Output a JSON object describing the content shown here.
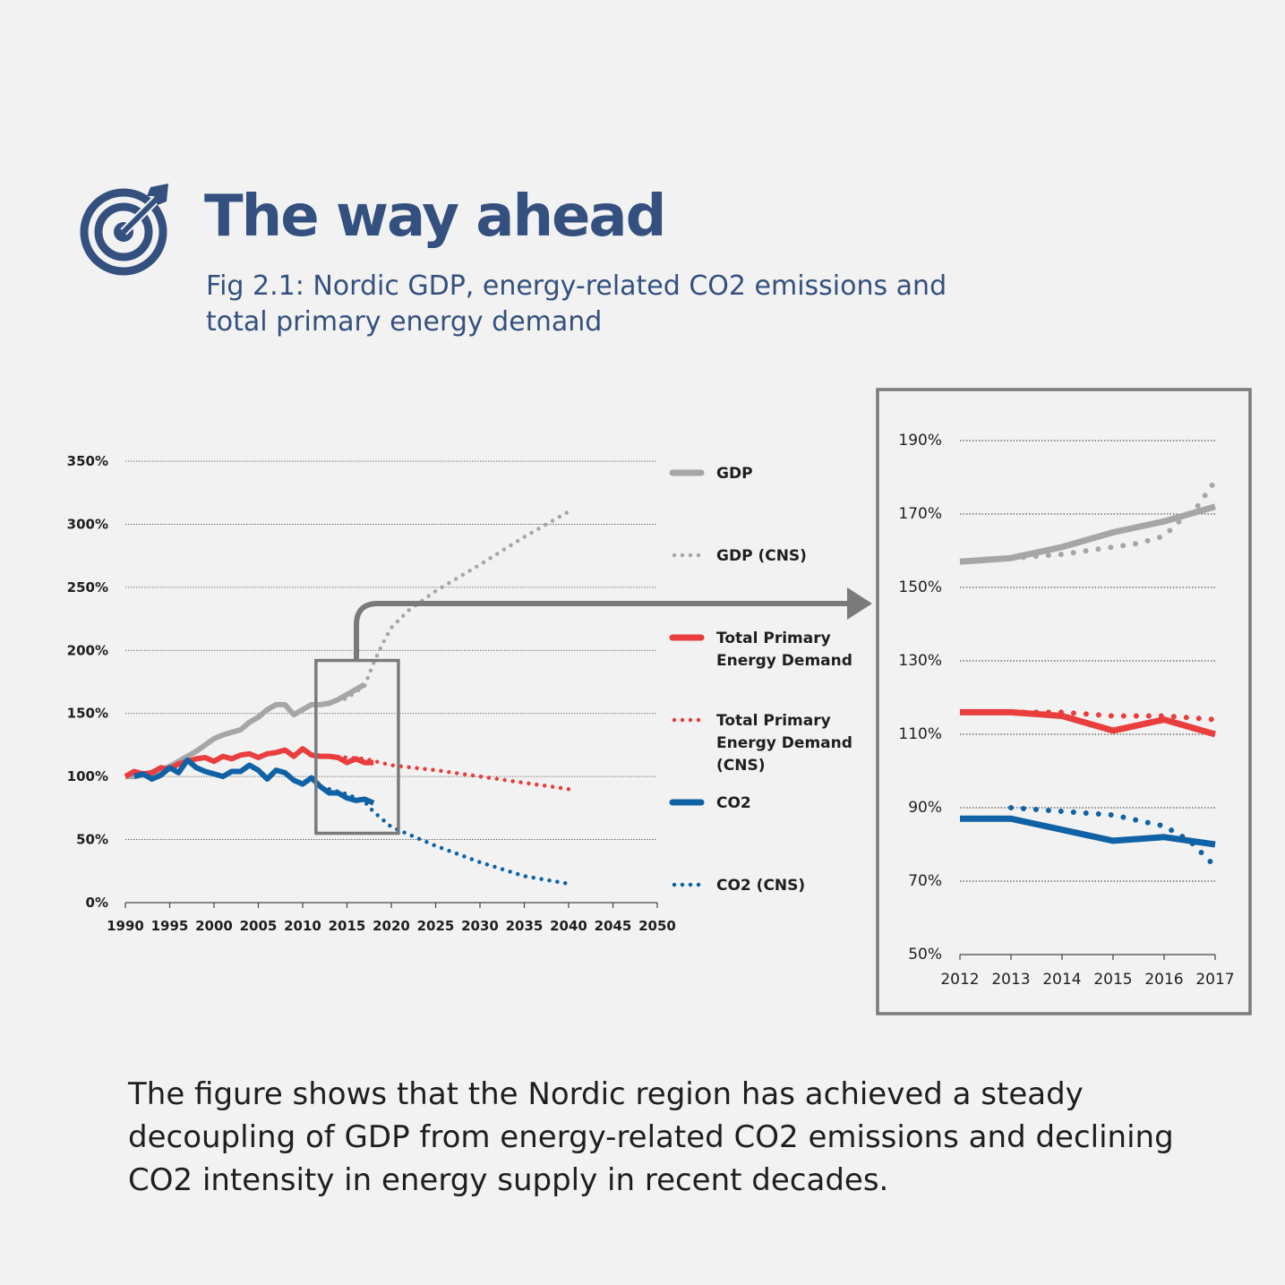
{
  "header": {
    "title": "The way ahead",
    "subtitle": "Fig 2.1: Nordic GDP, energy-related CO2 emissions and total primary energy demand",
    "icon": "target-arrow-icon",
    "color": "#34507f"
  },
  "caption": "The figure shows that the Nordic region has achieved a steady decoupling of GDP from energy-related CO2 emissions and declining CO2 intensity in energy supply in recent decades.",
  "colors": {
    "gdp": "#a6a6a6",
    "energy": "#ea3d3e",
    "co2": "#0f62a5",
    "zoom_frame": "#7a7a7a"
  },
  "chart_data": [
    {
      "type": "line",
      "title": "",
      "xlabel": "",
      "ylabel": "",
      "xlim": [
        1990,
        2050
      ],
      "ylim": [
        0,
        350
      ],
      "x_ticks": [
        "1990",
        "1995",
        "2000",
        "2005",
        "2010",
        "2015",
        "2020",
        "2025",
        "2030",
        "2035",
        "2040",
        "2045",
        "2050"
      ],
      "y_ticks": [
        "0%",
        "50%",
        "100%",
        "150%",
        "200%",
        "250%",
        "300%",
        "350%"
      ],
      "grid": true,
      "legend_position": "right",
      "series": [
        {
          "name": "GDP",
          "key": "gdp",
          "style": "solid",
          "x": [
            1990,
            1991,
            1992,
            1993,
            1994,
            1995,
            1996,
            1997,
            1998,
            1999,
            2000,
            2001,
            2002,
            2003,
            2004,
            2005,
            2006,
            2007,
            2008,
            2009,
            2010,
            2011,
            2012,
            2013,
            2014,
            2015,
            2016,
            2017
          ],
          "y": [
            100,
            100,
            101,
            102,
            105,
            108,
            112,
            116,
            120,
            125,
            130,
            133,
            135,
            137,
            143,
            147,
            153,
            157,
            157,
            149,
            153,
            157,
            157,
            158,
            161,
            165,
            169,
            173
          ]
        },
        {
          "name": "GDP (CNS)",
          "key": "gdp",
          "style": "dotted",
          "x": [
            2013,
            2015,
            2017,
            2018,
            2019,
            2020,
            2022,
            2025,
            2030,
            2035,
            2040
          ],
          "y": [
            158,
            162,
            172,
            190,
            205,
            218,
            232,
            247,
            268,
            290,
            310
          ]
        },
        {
          "name": "Total Primary Energy Demand",
          "key": "energy",
          "style": "solid",
          "x": [
            1990,
            1991,
            1992,
            1993,
            1994,
            1995,
            1996,
            1997,
            1998,
            1999,
            2000,
            2001,
            2002,
            2003,
            2004,
            2005,
            2006,
            2007,
            2008,
            2009,
            2010,
            2011,
            2012,
            2013,
            2014,
            2015,
            2016,
            2017,
            2018
          ],
          "y": [
            100,
            104,
            102,
            103,
            107,
            106,
            110,
            112,
            114,
            115,
            112,
            116,
            114,
            117,
            118,
            115,
            118,
            119,
            121,
            116,
            122,
            117,
            116,
            116,
            115,
            111,
            114,
            111,
            111
          ]
        },
        {
          "name": "Total Primary Energy Demand (CNS)",
          "key": "energy",
          "style": "dotted",
          "x": [
            2013,
            2015,
            2017,
            2020,
            2025,
            2030,
            2035,
            2040
          ],
          "y": [
            116,
            115,
            114,
            109,
            105,
            100,
            95,
            90
          ]
        },
        {
          "name": "CO2",
          "key": "co2",
          "style": "solid",
          "x": [
            1991,
            1992,
            1993,
            1994,
            1995,
            1996,
            1997,
            1998,
            1999,
            2000,
            2001,
            2002,
            2003,
            2004,
            2005,
            2006,
            2007,
            2008,
            2009,
            2010,
            2011,
            2012,
            2013,
            2014,
            2015,
            2016,
            2017,
            2018
          ],
          "y": [
            100,
            102,
            98,
            101,
            107,
            103,
            113,
            107,
            104,
            102,
            100,
            104,
            104,
            109,
            105,
            98,
            105,
            103,
            97,
            94,
            99,
            92,
            87,
            87,
            83,
            81,
            82,
            79
          ]
        },
        {
          "name": "CO2 (CNS)",
          "key": "co2",
          "style": "dotted",
          "x": [
            2013,
            2015,
            2017,
            2018,
            2020,
            2025,
            2030,
            2035,
            2040
          ],
          "y": [
            90,
            86,
            80,
            72,
            60,
            45,
            32,
            21,
            15
          ]
        }
      ]
    },
    {
      "type": "line",
      "title": "",
      "xlim": [
        2012,
        2017
      ],
      "ylim": [
        50,
        190
      ],
      "x_ticks": [
        "2012",
        "2013",
        "2014",
        "2015",
        "2016",
        "2017"
      ],
      "y_ticks": [
        "50%",
        "70%",
        "90%",
        "110%",
        "130%",
        "150%",
        "170%",
        "190%"
      ],
      "grid": true,
      "series": [
        {
          "name": "GDP",
          "key": "gdp",
          "style": "solid",
          "x": [
            2012,
            2013,
            2014,
            2015,
            2016,
            2017
          ],
          "y": [
            157,
            158,
            161,
            165,
            168,
            172
          ]
        },
        {
          "name": "GDP (CNS)",
          "key": "gdp",
          "style": "dotted",
          "x": [
            2013,
            2014,
            2015,
            2015.5,
            2016,
            2016.3,
            2016.6,
            2017
          ],
          "y": [
            158,
            159,
            161,
            162,
            164,
            168,
            171,
            179
          ]
        },
        {
          "name": "Total Primary Energy Demand",
          "key": "energy",
          "style": "solid",
          "x": [
            2012,
            2013,
            2014,
            2015,
            2016,
            2017
          ],
          "y": [
            116,
            116,
            115,
            111,
            114,
            110
          ]
        },
        {
          "name": "Total Primary Energy Demand (CNS)",
          "key": "energy",
          "style": "dotted",
          "x": [
            2013,
            2014,
            2015,
            2016,
            2017
          ],
          "y": [
            116,
            116,
            115,
            115,
            114
          ]
        },
        {
          "name": "CO2",
          "key": "co2",
          "style": "solid",
          "x": [
            2012,
            2013,
            2014,
            2015,
            2016,
            2017
          ],
          "y": [
            87,
            87,
            84,
            81,
            82,
            80
          ]
        },
        {
          "name": "CO2 (CNS)",
          "key": "co2",
          "style": "dotted",
          "x": [
            2013,
            2014,
            2015,
            2016,
            2016.5,
            2017
          ],
          "y": [
            90,
            89,
            88,
            85,
            81,
            74
          ]
        }
      ]
    }
  ],
  "legend": [
    {
      "label_lines": [
        "GDP"
      ],
      "key": "gdp",
      "style": "solid"
    },
    {
      "label_lines": [
        "GDP (CNS)"
      ],
      "key": "gdp",
      "style": "dotted"
    },
    {
      "label_lines": [
        "Total Primary",
        "Energy Demand"
      ],
      "key": "energy",
      "style": "solid"
    },
    {
      "label_lines": [
        "Total Primary",
        "Energy Demand",
        "(CNS)"
      ],
      "key": "energy",
      "style": "dotted"
    },
    {
      "label_lines": [
        "CO2"
      ],
      "key": "co2",
      "style": "solid"
    },
    {
      "label_lines": [
        "CO2 (CNS)"
      ],
      "key": "co2",
      "style": "dotted"
    }
  ]
}
